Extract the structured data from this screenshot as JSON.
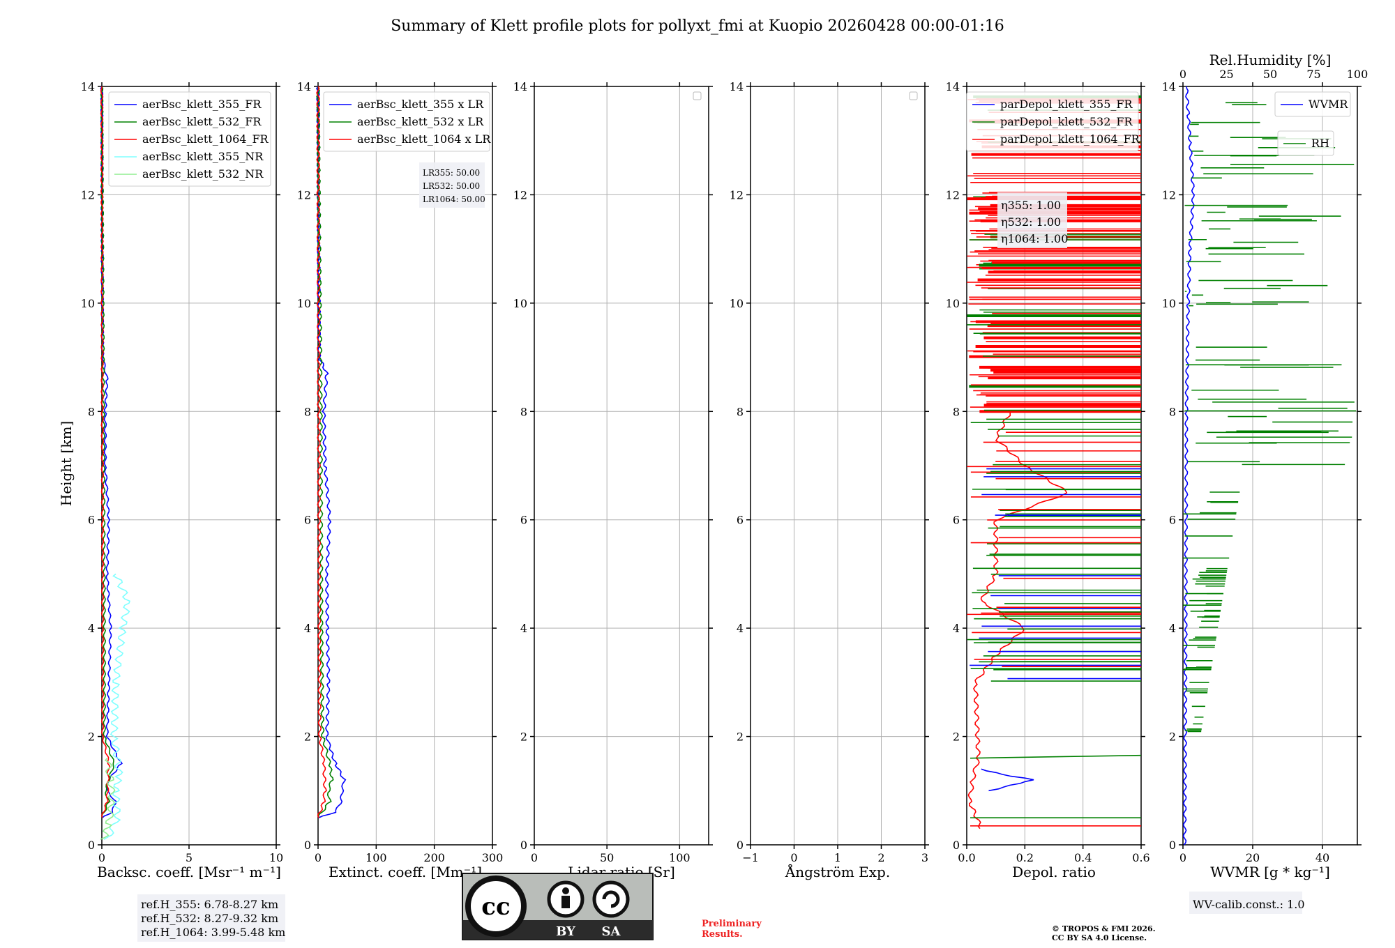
{
  "title": "Summary of Klett profile plots for pollyxt_fmi at Kuopio 20260428 00:00-01:16",
  "y_label": "Height [km]",
  "y_ticks": [
    "0",
    "2",
    "4",
    "6",
    "8",
    "10",
    "12",
    "14"
  ],
  "panels": [
    {
      "id": "bsc",
      "xlabel": "Backsc. coeff. [Msr⁻¹ m⁻¹]",
      "xticks": [
        "0",
        "5",
        "10"
      ],
      "xlim": [
        0,
        10
      ]
    },
    {
      "id": "ext",
      "xlabel": "Extinct. coeff. [Mm⁻¹]",
      "xticks": [
        "0",
        "100",
        "200",
        "300"
      ],
      "xlim": [
        0,
        300
      ]
    },
    {
      "id": "lr",
      "xlabel": "Lidar ratio [Sr]",
      "xticks": [
        "0",
        "50",
        "100"
      ],
      "xlim": [
        0,
        120
      ]
    },
    {
      "id": "ang",
      "xlabel": "Ångström Exp.",
      "xticks": [
        "−1",
        "0",
        "1",
        "2",
        "3"
      ],
      "xlim": [
        -1,
        3
      ]
    },
    {
      "id": "dep",
      "xlabel": "Depol. ratio",
      "xticks": [
        "0.0",
        "0.2",
        "0.4",
        "0.6"
      ],
      "xlim": [
        0,
        0.6
      ]
    },
    {
      "id": "wv",
      "xlabel": "WVMR [g * kg⁻¹]",
      "xticks": [
        "0",
        "20",
        "40"
      ],
      "xlim": [
        0,
        50
      ],
      "top_label": "Rel.Humidity [%]",
      "top_ticks": [
        "0",
        "25",
        "50",
        "75",
        "100"
      ]
    }
  ],
  "legends": {
    "bsc": [
      {
        "label": "aerBsc_klett_355_FR",
        "color": "#0000ff"
      },
      {
        "label": "aerBsc_klett_532_FR",
        "color": "#008000"
      },
      {
        "label": "aerBsc_klett_1064_FR",
        "color": "#ff0000"
      },
      {
        "label": "aerBsc_klett_355_NR",
        "color": "#80ffff"
      },
      {
        "label": "aerBsc_klett_532_NR",
        "color": "#90ee90"
      }
    ],
    "ext": [
      {
        "label": "aerBsc_klett_355 x LR",
        "color": "#0000ff"
      },
      {
        "label": "aerBsc_klett_532 x LR",
        "color": "#008000"
      },
      {
        "label": "aerBsc_klett_1064 x LR",
        "color": "#ff0000"
      }
    ],
    "dep": [
      {
        "label": "parDepol_klett_355_FR",
        "color": "#0000ff"
      },
      {
        "label": "parDepol_klett_532_FR",
        "color": "#008000"
      },
      {
        "label": "parDepol_klett_1064_FR",
        "color": "#ff0000"
      }
    ],
    "wv_wvmr": {
      "label": "WVMR",
      "color": "#0000ff"
    },
    "wv_rh": {
      "label": "RH",
      "color": "#008000"
    }
  },
  "annotations": {
    "lr_box": [
      "LR355: 50.00",
      "LR532: 50.00",
      "LR1064: 50.00"
    ],
    "eta_box": [
      "η355: 1.00",
      "η532: 1.00",
      "η1064: 1.00"
    ],
    "ref_box": [
      "ref.H_355: 6.78-8.27 km",
      "ref.H_532: 8.27-9.32 km",
      "ref.H_1064: 3.99-5.48 km"
    ],
    "wv_calib": "WV-calib.const.: 1.0",
    "preliminary": [
      "Preliminary",
      "Results."
    ],
    "copyright": [
      "© TROPOS & FMI 2026.",
      "CC BY SA 4.0 License."
    ],
    "license_badge": [
      "BY",
      "SA"
    ]
  },
  "colors": {
    "b355": "#0000ff",
    "g532": "#008000",
    "r1064": "#ff0000",
    "c355nr": "#80ffff",
    "lg532nr": "#90ee90",
    "grid": "#b0b0b0"
  },
  "chart_data": [
    {
      "type": "line",
      "panel": "Backsc. coeff.",
      "ylim": [
        0,
        14
      ],
      "xlim": [
        0,
        10
      ],
      "series": [
        {
          "name": "aerBsc_klett_355_FR",
          "y": [
            0.5,
            0.6,
            0.8,
            1.0,
            1.2,
            1.5,
            2.0,
            3.0,
            4.0,
            5.0,
            6.0,
            7.0,
            8.0,
            8.6,
            9.0,
            11.0,
            14.0
          ],
          "x": [
            0.0,
            0.6,
            0.8,
            0.3,
            0.4,
            1.1,
            0.3,
            0.4,
            0.5,
            0.3,
            0.4,
            0.2,
            0.2,
            0.3,
            0.05,
            0.02,
            0.0
          ]
        },
        {
          "name": "aerBsc_klett_532_FR",
          "y": [
            0.5,
            0.8,
            1.0,
            1.5,
            2.0,
            4.0,
            8.0,
            14.0
          ],
          "x": [
            0.0,
            0.4,
            0.2,
            0.7,
            0.15,
            0.15,
            0.1,
            0.0
          ]
        },
        {
          "name": "aerBsc_klett_1064_FR",
          "y": [
            0.5,
            0.8,
            1.5,
            2.0,
            4.0,
            14.0
          ],
          "x": [
            0.0,
            0.3,
            0.4,
            0.05,
            0.05,
            0.0
          ]
        },
        {
          "name": "aerBsc_klett_355_NR",
          "y": [
            0.1,
            0.5,
            1.0,
            1.3,
            2.0,
            3.0,
            4.0,
            4.5,
            5.0
          ],
          "x": [
            0.3,
            0.9,
            0.8,
            1.0,
            0.7,
            0.8,
            1.2,
            1.5,
            0.8
          ]
        },
        {
          "name": "aerBsc_klett_532_NR",
          "y": [
            0.1,
            0.4,
            0.8,
            1.2,
            1.6
          ],
          "x": [
            0.1,
            0.4,
            0.6,
            0.5,
            0.3
          ]
        }
      ]
    },
    {
      "type": "line",
      "panel": "Extinct. coeff.",
      "ylim": [
        0,
        14
      ],
      "xlim": [
        0,
        300
      ],
      "series": [
        {
          "name": "aerBsc_klett_355 x LR",
          "y": [
            0.5,
            0.6,
            0.8,
            1.0,
            1.2,
            1.5,
            1.8,
            2.0,
            3.0,
            4.0,
            5.0,
            6.0,
            7.0,
            8.0,
            8.7,
            9.0,
            14.0
          ],
          "x": [
            0,
            30,
            40,
            42,
            45,
            30,
            20,
            15,
            18,
            16,
            15,
            20,
            12,
            10,
            15,
            2,
            0
          ]
        },
        {
          "name": "aerBsc_klett_532 x LR",
          "y": [
            0.5,
            0.8,
            1.0,
            1.2,
            1.5,
            2.0,
            4.0,
            8.0,
            14.0
          ],
          "x": [
            0,
            20,
            18,
            24,
            20,
            8,
            6,
            5,
            0
          ]
        },
        {
          "name": "aerBsc_klett_1064 x LR",
          "y": [
            0.5,
            0.8,
            1.0,
            1.5,
            2.0,
            4.0,
            14.0
          ],
          "x": [
            0,
            10,
            12,
            10,
            3,
            2,
            0
          ]
        }
      ]
    },
    {
      "type": "line",
      "panel": "Lidar ratio [Sr]",
      "series": []
    },
    {
      "type": "line",
      "panel": "Ångström Exp.",
      "series": []
    },
    {
      "type": "line",
      "panel": "Depol. ratio",
      "ylim": [
        0,
        14
      ],
      "xlim": [
        0,
        0.6
      ],
      "series": [
        {
          "name": "parDepol_klett_355_FR",
          "y": [
            1.0,
            1.1,
            1.2,
            1.3,
            1.4
          ],
          "x": [
            0.08,
            0.15,
            0.23,
            0.12,
            0.05
          ]
        },
        {
          "name": "parDepol_klett_1064_FR",
          "y": [
            0.3,
            0.8,
            1.2,
            1.6,
            3.0,
            3.5,
            4.0,
            4.5,
            5.0,
            6.0,
            6.5,
            7.0,
            7.5,
            8.0
          ],
          "x": [
            0.05,
            0.01,
            0.02,
            0.04,
            0.03,
            0.1,
            0.2,
            0.05,
            0.1,
            0.1,
            0.35,
            0.2,
            0.1,
            0.15
          ]
        }
      ]
    },
    {
      "type": "line",
      "panel": "WVMR / RH",
      "ylim": [
        0,
        14
      ],
      "series": [
        {
          "name": "WVMR",
          "y": [
            0,
            4,
            8,
            10,
            11,
            12,
            13,
            13.5,
            14
          ],
          "x": [
            0.5,
            0.8,
            1.0,
            1.5,
            2.0,
            3.0,
            2.0,
            1.5,
            1.0
          ]
        },
        {
          "name": "RH",
          "y": [
            2,
            4,
            5,
            6,
            7,
            7.5,
            8,
            8.5,
            9,
            9.5
          ],
          "x": [
            0,
            2,
            5,
            10,
            30,
            40,
            60,
            80,
            50,
            30
          ]
        }
      ]
    }
  ]
}
